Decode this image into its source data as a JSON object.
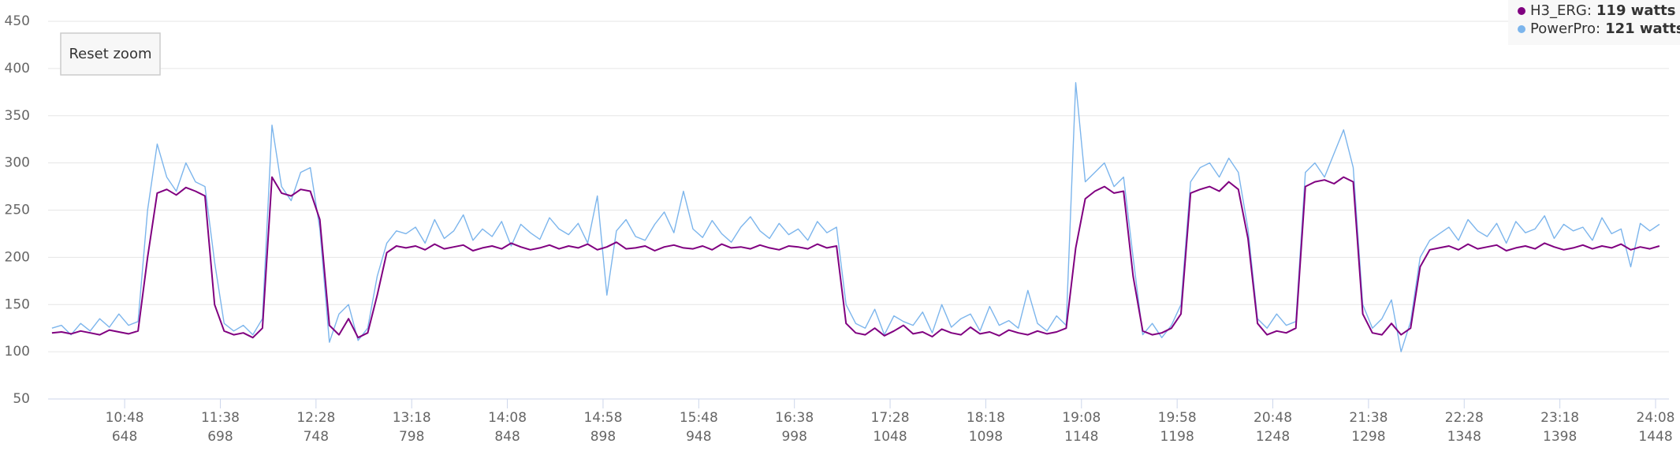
{
  "chart_data": {
    "type": "line",
    "reset_button": "Reset zoom",
    "legend_separator": ":",
    "xlim": [
      608,
      1455
    ],
    "ylim": [
      50,
      450
    ],
    "yticks": [
      50,
      100,
      150,
      200,
      250,
      300,
      350,
      400,
      450
    ],
    "xticks": [
      {
        "value": 648,
        "label": "10:48"
      },
      {
        "value": 698,
        "label": "11:38"
      },
      {
        "value": 748,
        "label": "12:28"
      },
      {
        "value": 798,
        "label": "13:18"
      },
      {
        "value": 848,
        "label": "14:08"
      },
      {
        "value": 898,
        "label": "14:58"
      },
      {
        "value": 948,
        "label": "15:48"
      },
      {
        "value": 998,
        "label": "16:38"
      },
      {
        "value": 1048,
        "label": "17:28"
      },
      {
        "value": 1098,
        "label": "18:18"
      },
      {
        "value": 1148,
        "label": "19:08"
      },
      {
        "value": 1198,
        "label": "19:58"
      },
      {
        "value": 1248,
        "label": "20:48"
      },
      {
        "value": 1298,
        "label": "21:38"
      },
      {
        "value": 1348,
        "label": "22:28"
      },
      {
        "value": 1398,
        "label": "23:18"
      },
      {
        "value": 1448,
        "label": "24:08"
      }
    ],
    "grid": true,
    "x": [
      610,
      615,
      620,
      625,
      630,
      635,
      640,
      645,
      650,
      655,
      660,
      665,
      670,
      675,
      680,
      685,
      690,
      695,
      700,
      705,
      710,
      715,
      720,
      725,
      730,
      735,
      740,
      745,
      750,
      755,
      760,
      765,
      770,
      775,
      780,
      785,
      790,
      795,
      800,
      805,
      810,
      815,
      820,
      825,
      830,
      835,
      840,
      845,
      850,
      855,
      860,
      865,
      870,
      875,
      880,
      885,
      890,
      895,
      900,
      905,
      910,
      915,
      920,
      925,
      930,
      935,
      940,
      945,
      950,
      955,
      960,
      965,
      970,
      975,
      980,
      985,
      990,
      995,
      1000,
      1005,
      1010,
      1015,
      1020,
      1025,
      1030,
      1035,
      1040,
      1045,
      1050,
      1055,
      1060,
      1065,
      1070,
      1075,
      1080,
      1085,
      1090,
      1095,
      1100,
      1105,
      1110,
      1115,
      1120,
      1125,
      1130,
      1135,
      1140,
      1145,
      1150,
      1155,
      1160,
      1165,
      1170,
      1175,
      1180,
      1185,
      1190,
      1195,
      1200,
      1205,
      1210,
      1215,
      1220,
      1225,
      1230,
      1235,
      1240,
      1245,
      1250,
      1255,
      1260,
      1265,
      1270,
      1275,
      1280,
      1285,
      1290,
      1295,
      1300,
      1305,
      1310,
      1315,
      1320,
      1325,
      1330,
      1335,
      1340,
      1345,
      1350,
      1355,
      1360,
      1365,
      1370,
      1375,
      1380,
      1385,
      1390,
      1395,
      1400,
      1405,
      1410,
      1415,
      1420,
      1425,
      1430,
      1435,
      1440,
      1445,
      1450
    ],
    "series": [
      {
        "name": "PowerPro",
        "readout": "121 watts",
        "color": "#7cb5ec",
        "values": [
          125,
          128,
          118,
          130,
          122,
          135,
          126,
          140,
          128,
          132,
          250,
          320,
          285,
          270,
          300,
          280,
          275,
          195,
          130,
          122,
          128,
          118,
          135,
          340,
          275,
          260,
          290,
          295,
          230,
          110,
          140,
          150,
          112,
          125,
          180,
          215,
          228,
          225,
          232,
          215,
          240,
          220,
          228,
          245,
          218,
          230,
          222,
          238,
          212,
          235,
          226,
          219,
          242,
          230,
          224,
          236,
          215,
          265,
          160,
          228,
          240,
          222,
          218,
          235,
          248,
          226,
          270,
          230,
          221,
          239,
          225,
          216,
          232,
          243,
          228,
          220,
          236,
          224,
          230,
          218,
          238,
          226,
          232,
          150,
          130,
          125,
          145,
          118,
          138,
          132,
          128,
          142,
          120,
          150,
          126,
          135,
          140,
          122,
          148,
          128,
          133,
          125,
          165,
          130,
          122,
          138,
          128,
          385,
          280,
          290,
          300,
          275,
          285,
          200,
          118,
          130,
          115,
          128,
          150,
          280,
          295,
          300,
          285,
          305,
          290,
          230,
          135,
          125,
          140,
          128,
          132,
          290,
          300,
          285,
          310,
          335,
          295,
          150,
          125,
          135,
          155,
          100,
          132,
          200,
          218,
          225,
          232,
          218,
          240,
          228,
          222,
          236,
          215,
          238,
          226,
          230,
          244,
          220,
          235,
          228,
          232,
          218,
          242,
          225,
          230,
          190,
          236,
          228,
          235
        ]
      },
      {
        "name": "H3_ERG",
        "readout": "119 watts",
        "color": "#800080",
        "values": [
          120,
          121,
          119,
          122,
          120,
          118,
          123,
          121,
          119,
          122,
          200,
          268,
          272,
          266,
          274,
          270,
          265,
          150,
          122,
          118,
          120,
          115,
          125,
          285,
          268,
          265,
          272,
          270,
          240,
          128,
          118,
          135,
          115,
          120,
          160,
          205,
          212,
          210,
          212,
          208,
          214,
          209,
          211,
          213,
          207,
          210,
          212,
          209,
          215,
          211,
          208,
          210,
          213,
          209,
          212,
          210,
          214,
          208,
          211,
          216,
          209,
          210,
          212,
          207,
          211,
          213,
          210,
          209,
          212,
          208,
          214,
          210,
          211,
          209,
          213,
          210,
          208,
          212,
          211,
          209,
          214,
          210,
          212,
          130,
          120,
          118,
          125,
          117,
          122,
          128,
          119,
          121,
          116,
          124,
          120,
          118,
          126,
          119,
          121,
          117,
          123,
          120,
          118,
          122,
          119,
          121,
          125,
          210,
          262,
          270,
          275,
          268,
          270,
          180,
          122,
          118,
          120,
          125,
          140,
          268,
          272,
          275,
          270,
          280,
          272,
          220,
          130,
          118,
          122,
          120,
          125,
          275,
          280,
          282,
          278,
          285,
          280,
          140,
          120,
          118,
          130,
          118,
          125,
          190,
          208,
          210,
          212,
          208,
          214,
          209,
          211,
          213,
          207,
          210,
          212,
          209,
          215,
          211,
          208,
          210,
          213,
          209,
          212,
          210,
          214,
          208,
          211,
          209,
          212
        ]
      }
    ]
  }
}
